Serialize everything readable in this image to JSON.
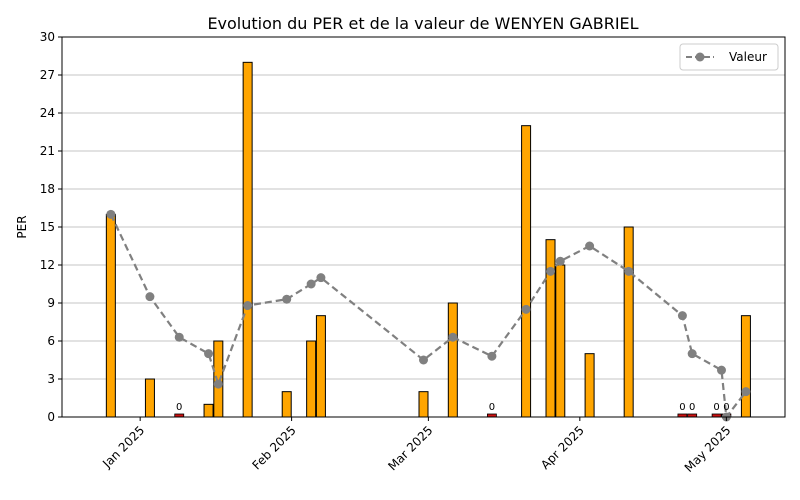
{
  "chart_data": {
    "type": "bar",
    "title": "Evolution du PER et de la valeur de WENYEN GABRIEL",
    "ylabel": "PER",
    "xlabel": "",
    "ylim": [
      0,
      30
    ],
    "yticks": [
      0,
      3,
      6,
      9,
      12,
      15,
      18,
      21,
      24,
      27,
      30
    ],
    "xticks": [
      {
        "date": "2025-01-01",
        "label": "Jan 2025"
      },
      {
        "date": "2025-02-01",
        "label": "Feb 2025"
      },
      {
        "date": "2025-03-01",
        "label": "Mar 2025"
      },
      {
        "date": "2025-04-01",
        "label": "Apr 2025"
      },
      {
        "date": "2025-05-01",
        "label": "May 2025"
      }
    ],
    "grid": "horizontal",
    "legend": {
      "position": "top-right",
      "label": "Valeur"
    },
    "colors": {
      "bar": "#FFA500",
      "zero_bar": "#CC1111",
      "line": "#808080",
      "bar_edge": "#000000"
    },
    "bars": [
      {
        "date": "2024-12-26",
        "per": 16
      },
      {
        "date": "2025-01-03",
        "per": 3
      },
      {
        "date": "2025-01-09",
        "per": 0
      },
      {
        "date": "2025-01-15",
        "per": 1
      },
      {
        "date": "2025-01-17",
        "per": 6
      },
      {
        "date": "2025-01-23",
        "per": 28
      },
      {
        "date": "2025-01-31",
        "per": 2
      },
      {
        "date": "2025-02-05",
        "per": 6
      },
      {
        "date": "2025-02-07",
        "per": 8
      },
      {
        "date": "2025-02-28",
        "per": 2
      },
      {
        "date": "2025-03-06",
        "per": 9
      },
      {
        "date": "2025-03-14",
        "per": 0
      },
      {
        "date": "2025-03-21",
        "per": 23
      },
      {
        "date": "2025-03-26",
        "per": 14
      },
      {
        "date": "2025-03-28",
        "per": 12
      },
      {
        "date": "2025-04-03",
        "per": 5
      },
      {
        "date": "2025-04-11",
        "per": 15
      },
      {
        "date": "2025-04-22",
        "per": 0
      },
      {
        "date": "2025-04-24",
        "per": 0
      },
      {
        "date": "2025-04-29",
        "per": 0
      },
      {
        "date": "2025-05-01",
        "per": 0
      },
      {
        "date": "2025-05-05",
        "per": 8
      }
    ],
    "zero_labels": [
      "0",
      "0",
      "0",
      "0",
      "0",
      "0"
    ],
    "series": [
      {
        "name": "Valeur",
        "points": [
          {
            "date": "2024-12-26",
            "value": 16
          },
          {
            "date": "2025-01-03",
            "value": 9.5
          },
          {
            "date": "2025-01-09",
            "value": 6.3
          },
          {
            "date": "2025-01-15",
            "value": 5
          },
          {
            "date": "2025-01-17",
            "value": 2.6
          },
          {
            "date": "2025-01-23",
            "value": 8.8
          },
          {
            "date": "2025-01-31",
            "value": 9.3
          },
          {
            "date": "2025-02-05",
            "value": 10.5
          },
          {
            "date": "2025-02-07",
            "value": 11
          },
          {
            "date": "2025-02-28",
            "value": 4.5
          },
          {
            "date": "2025-03-06",
            "value": 6.3
          },
          {
            "date": "2025-03-14",
            "value": 4.8
          },
          {
            "date": "2025-03-21",
            "value": 8.5
          },
          {
            "date": "2025-03-26",
            "value": 11.5
          },
          {
            "date": "2025-03-28",
            "value": 12.3
          },
          {
            "date": "2025-04-03",
            "value": 13.5
          },
          {
            "date": "2025-04-11",
            "value": 11.5
          },
          {
            "date": "2025-04-22",
            "value": 8
          },
          {
            "date": "2025-04-24",
            "value": 5
          },
          {
            "date": "2025-04-30",
            "value": 3.7
          },
          {
            "date": "2025-05-01",
            "value": 0
          },
          {
            "date": "2025-05-05",
            "value": 2
          }
        ]
      }
    ]
  }
}
